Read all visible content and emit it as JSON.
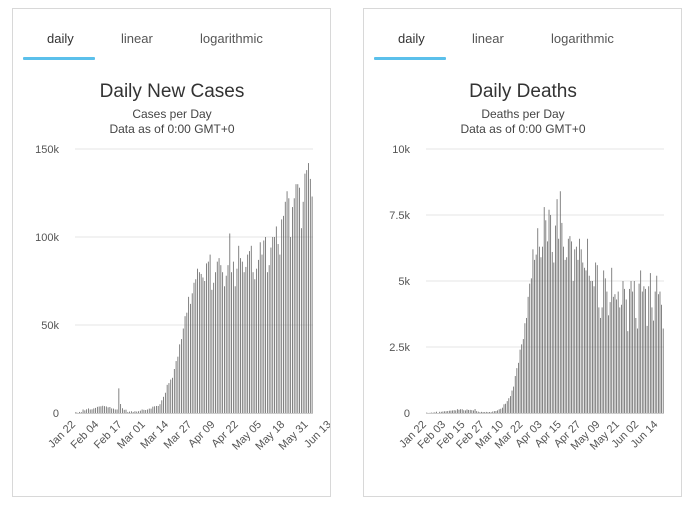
{
  "tabs": [
    "daily",
    "linear",
    "logarithmic"
  ],
  "active_tab": "daily",
  "colors": {
    "accent": "#5bc0eb",
    "bar": "#666666",
    "grid": "#e6e6e6",
    "axis": "#cccccc"
  },
  "chart_data": [
    {
      "type": "bar",
      "title": "Daily New Cases",
      "subtitle": "Cases per Day",
      "subtitle2": "Data as of 0:00 GMT+0",
      "xlabel": "",
      "ylabel": "",
      "ylim": [
        0,
        150000
      ],
      "yticks": [
        0,
        50000,
        100000,
        150000
      ],
      "ytick_labels": [
        "0",
        "50k",
        "100k",
        "150k"
      ],
      "xtick_labels": [
        "Jan 22",
        "Feb 04",
        "Feb 17",
        "Mar 01",
        "Mar 14",
        "Mar 27",
        "Apr 09",
        "Apr 22",
        "May 05",
        "May 18",
        "May 31",
        "Jun 13"
      ],
      "xtick_step": 13,
      "grid": true,
      "categories_start": "Jan 22",
      "values": [
        580,
        100,
        600,
        500,
        2000,
        1500,
        2100,
        2600,
        2000,
        2100,
        2600,
        2900,
        3500,
        3700,
        3800,
        4100,
        3900,
        3700,
        3200,
        3400,
        2600,
        2500,
        2000,
        2000,
        14000,
        5100,
        2700,
        1800,
        1900,
        500,
        800,
        1000,
        600,
        1000,
        800,
        1000,
        1300,
        2000,
        1800,
        1700,
        2000,
        2500,
        2500,
        3600,
        3800,
        4000,
        4000,
        5000,
        7200,
        9200,
        11500,
        16000,
        17000,
        19000,
        20000,
        25000,
        29500,
        32000,
        39000,
        42000,
        48000,
        55000,
        57000,
        66000,
        62000,
        68000,
        74000,
        76000,
        82000,
        80000,
        79000,
        77000,
        75000,
        85000,
        86000,
        90000,
        70000,
        74000,
        80000,
        86000,
        88000,
        84000,
        80000,
        72000,
        78000,
        84000,
        102000,
        80000,
        86000,
        72000,
        82000,
        95000,
        88000,
        86000,
        80000,
        83000,
        90000,
        92000,
        95000,
        80000,
        76000,
        82000,
        87000,
        97000,
        90000,
        98000,
        100000,
        80000,
        84000,
        94000,
        100000,
        100000,
        106000,
        96000,
        90000,
        110000,
        112000,
        120000,
        126000,
        122000,
        100000,
        117000,
        122000,
        130000,
        130000,
        128000,
        105000,
        120000,
        136000,
        138000,
        142000,
        133000,
        123000
      ]
    },
    {
      "type": "bar",
      "title": "Daily Deaths",
      "subtitle": "Deaths per Day",
      "subtitle2": "Data as of 0:00 GMT+0",
      "xlabel": "",
      "ylabel": "",
      "ylim": [
        0,
        10000
      ],
      "yticks": [
        0,
        2500,
        5000,
        7500,
        10000
      ],
      "ytick_labels": [
        "0",
        "2.5k",
        "5k",
        "7.5k",
        "10k"
      ],
      "xtick_labels": [
        "Jan 22",
        "Feb 03",
        "Feb 15",
        "Feb 27",
        "Mar 10",
        "Mar 22",
        "Apr 03",
        "Apr 15",
        "Apr 27",
        "May 09",
        "May 21",
        "Jun 02",
        "Jun 14"
      ],
      "xtick_step": 12,
      "grid": true,
      "categories_start": "Jan 22",
      "values": [
        17,
        1,
        8,
        16,
        14,
        26,
        49,
        2,
        46,
        45,
        57,
        64,
        66,
        73,
        86,
        89,
        97,
        108,
        97,
        146,
        121,
        143,
        142,
        105,
        98,
        136,
        115,
        118,
        109,
        97,
        150,
        71,
        52,
        29,
        44,
        37,
        35,
        42,
        31,
        38,
        31,
        56,
        70,
        75,
        100,
        140,
        160,
        200,
        330,
        350,
        450,
        560,
        640,
        850,
        1000,
        1400,
        1700,
        1900,
        2400,
        2600,
        2800,
        3400,
        3600,
        4400,
        4900,
        5100,
        6200,
        5800,
        6000,
        7000,
        6300,
        5900,
        6300,
        7800,
        7300,
        6500,
        7700,
        7500,
        6100,
        5700,
        7100,
        8100,
        6600,
        8400,
        7200,
        6300,
        5800,
        5900,
        6600,
        6700,
        6500,
        5000,
        6200,
        6300,
        5800,
        6600,
        6200,
        5700,
        5500,
        5400,
        6600,
        5200,
        5000,
        5000,
        4800,
        5700,
        5600,
        4000,
        3600,
        4000,
        5400,
        5100,
        4600,
        3700,
        4200,
        5500,
        4400,
        4500,
        4300,
        4600,
        4000,
        4100,
        5000,
        4700,
        4300,
        3100,
        4700,
        5000,
        4600,
        5000,
        3600,
        3200,
        4900,
        5400,
        4600,
        4800,
        4700,
        3300,
        4800,
        5300,
        4000,
        3500,
        4600,
        5200,
        4500,
        4600,
        4100,
        3200
      ]
    }
  ]
}
